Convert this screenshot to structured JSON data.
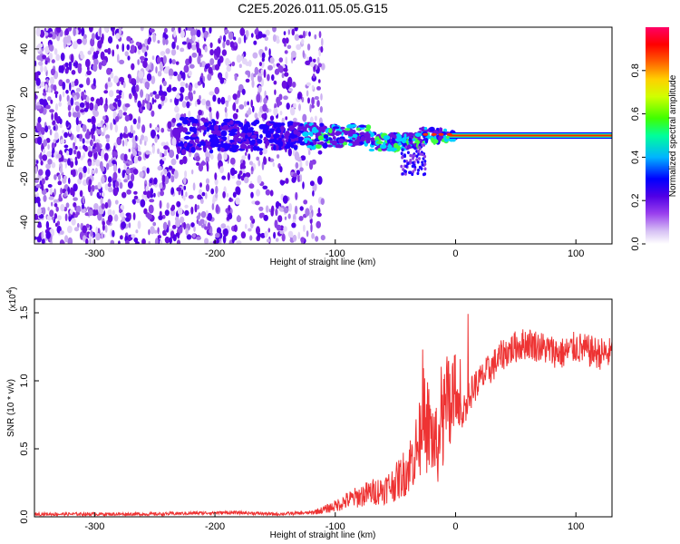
{
  "title": "C2E5.2026.011.05.05.G15",
  "chart_data": [
    {
      "type": "heatmap",
      "name": "spectrogram",
      "xlabel": "Height of straight line (km)",
      "ylabel": "Frequency (Hz)",
      "xlim": [
        -350,
        130
      ],
      "ylim": [
        -50,
        50
      ],
      "xticks": [
        -300,
        -200,
        -100,
        0,
        100
      ],
      "xtick_labels": [
        "-300",
        "-200",
        "-100",
        "0",
        "100"
      ],
      "yticks": [
        -40,
        -20,
        0,
        20,
        40
      ],
      "ytick_labels": [
        "-40",
        "-20",
        "0",
        "20",
        "40"
      ],
      "colorbar": {
        "label": "Normalized spectral amplitude",
        "range": [
          0,
          1
        ],
        "ticks": [
          0.0,
          0.2,
          0.4,
          0.6,
          0.8
        ],
        "tick_labels": [
          "0.0",
          "0.2",
          "0.4",
          "0.6",
          "0.8"
        ],
        "colors": [
          "#ffffff",
          "#c8a8f0",
          "#8a2be2",
          "#5a00e0",
          "#0000ff",
          "#00c8ff",
          "#00ff80",
          "#80ff00",
          "#ffff00",
          "#ff8000",
          "#ff0000",
          "#ff0060"
        ]
      },
      "features": {
        "noise_region_x": [
          -350,
          -120
        ],
        "signal_center_freq": 0,
        "strong_carrier_start_x": 0
      }
    },
    {
      "type": "line",
      "name": "snr",
      "xlabel": "Height of straight line (km)",
      "ylabel": "SNR (10 * v/v)",
      "scale_note_base": "(x10",
      "scale_note_exp": "4",
      "scale_note_end": ")",
      "xlim": [
        -350,
        130
      ],
      "ylim": [
        0,
        1.6
      ],
      "xticks": [
        -300,
        -200,
        -100,
        0,
        100
      ],
      "xtick_labels": [
        "-300",
        "-200",
        "-100",
        "0",
        "100"
      ],
      "yticks": [
        0.0,
        0.5,
        1.0,
        1.5
      ],
      "ytick_labels": [
        "0.0",
        "0.5",
        "1.0",
        "1.5"
      ],
      "color": "#ee3333",
      "series": [
        {
          "name": "SNR",
          "x": [
            -350,
            -300,
            -250,
            -200,
            -180,
            -150,
            -120,
            -110,
            -100,
            -90,
            -80,
            -70,
            -60,
            -50,
            -40,
            -35,
            -30,
            -25,
            -20,
            -15,
            -10,
            -5,
            0,
            5,
            10,
            15,
            20,
            25,
            30,
            40,
            50,
            60,
            70,
            80,
            90,
            100,
            110,
            120,
            130
          ],
          "values": [
            0.02,
            0.02,
            0.02,
            0.03,
            0.03,
            0.02,
            0.03,
            0.05,
            0.08,
            0.12,
            0.15,
            0.18,
            0.2,
            0.25,
            0.35,
            0.45,
            0.55,
            0.7,
            0.6,
            0.5,
            0.7,
            0.8,
            0.85,
            0.75,
            0.85,
            0.95,
            1.0,
            1.05,
            1.1,
            1.2,
            1.25,
            1.28,
            1.25,
            1.22,
            1.2,
            1.25,
            1.22,
            1.2,
            1.2
          ]
        }
      ]
    }
  ]
}
